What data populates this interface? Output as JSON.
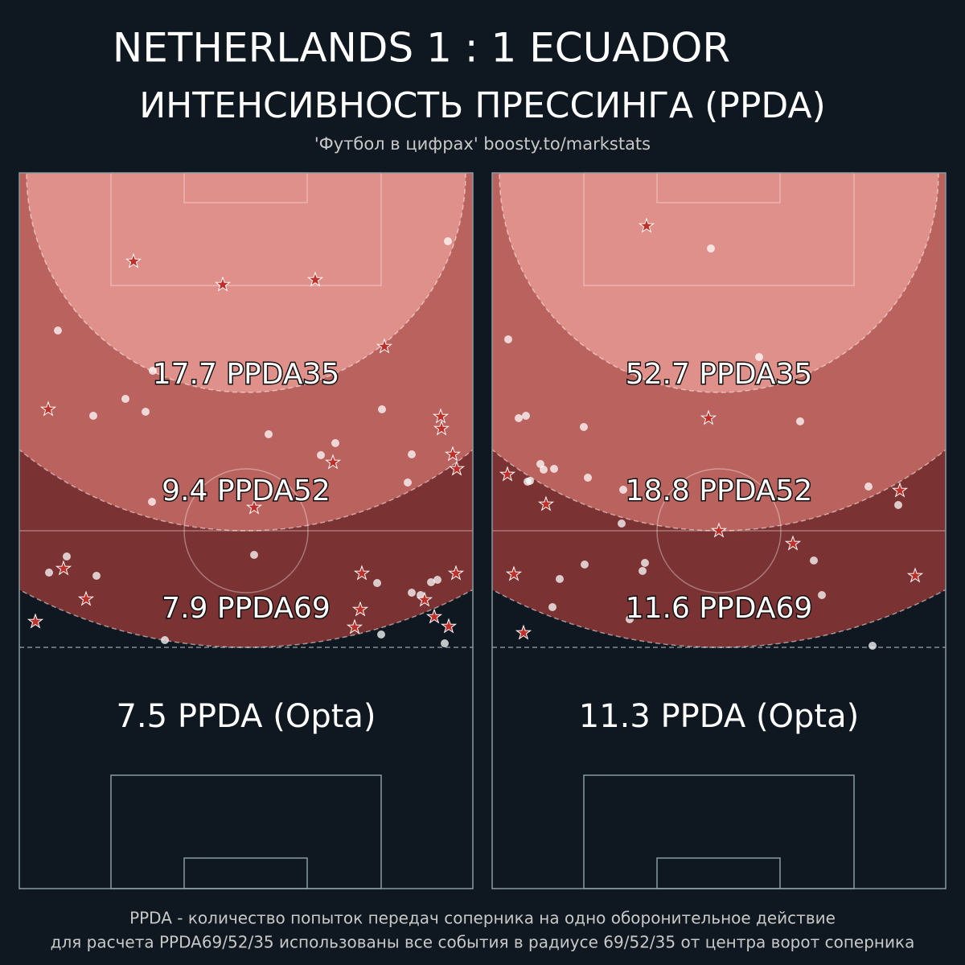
{
  "header": {
    "title": "NETHERLANDS  1 : 1  ECUADOR",
    "subtitle": "ИНТЕНСИВНОСТЬ ПРЕССИНГА (PPDA)",
    "source": "'Футбол в цифрах' boosty.to/markstats"
  },
  "panels": [
    {
      "ppda35": "17.7 PPDA35",
      "ppda52": "9.4 PPDA52",
      "ppda69": "7.9 PPDA69",
      "opta": "7.5 PPDA (Opta)"
    },
    {
      "ppda35": "52.7 PPDA35",
      "ppda52": "18.8 PPDA52",
      "ppda69": "11.6 PPDA69",
      "opta": "11.3 PPDA (Opta)"
    }
  ],
  "footer": [
    "PPDA - количество попыток передач соперника на одно оборонительное действие",
    "для расчета PPDA69/52/35 использованы все события в радиусе 69/52/35 от центра ворот соперника"
  ]
}
